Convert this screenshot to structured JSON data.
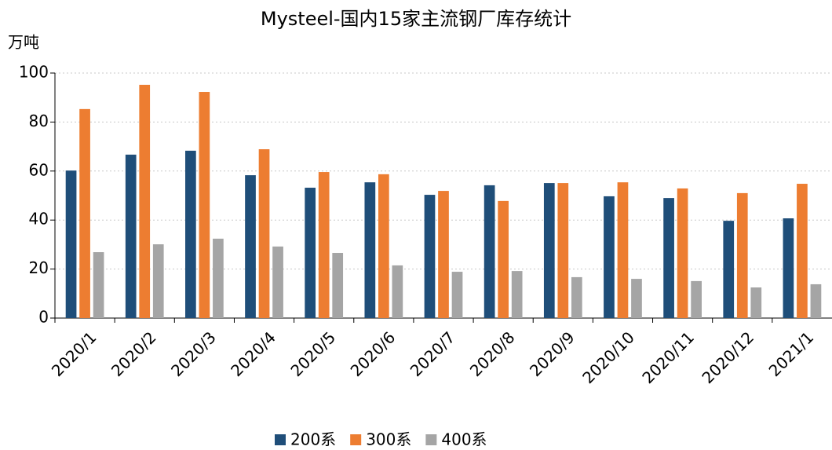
{
  "chart_data": {
    "type": "bar",
    "title": "Mysteel-国内15家主流钢厂库存统计",
    "y_label": "万吨",
    "categories": [
      "2020/1",
      "2020/2",
      "2020/3",
      "2020/4",
      "2020/5",
      "2020/6",
      "2020/7",
      "2020/8",
      "2020/9",
      "2020/10",
      "2020/11",
      "2020/12",
      "2021/1"
    ],
    "series": [
      {
        "name": "200系",
        "color": "#1f4e79",
        "values": [
          60.2,
          66.7,
          68.3,
          58.3,
          53.2,
          55.4,
          50.3,
          54.2,
          55.1,
          49.7,
          49.0,
          39.7,
          40.7
        ]
      },
      {
        "name": "300系",
        "color": "#ed7d31",
        "values": [
          85.3,
          95.2,
          92.3,
          68.9,
          59.6,
          58.7,
          51.9,
          47.8,
          55.1,
          55.4,
          52.9,
          51.0,
          54.8
        ]
      },
      {
        "name": "400系",
        "color": "#a5a5a5",
        "values": [
          26.9,
          30.1,
          32.4,
          29.2,
          26.6,
          21.5,
          18.9,
          19.2,
          16.7,
          16.0,
          15.1,
          12.5,
          13.8
        ]
      }
    ],
    "ylim": [
      0,
      100
    ],
    "yticks": [
      0,
      20,
      40,
      60,
      80,
      100
    ],
    "grid": true,
    "legend": "bottom"
  }
}
